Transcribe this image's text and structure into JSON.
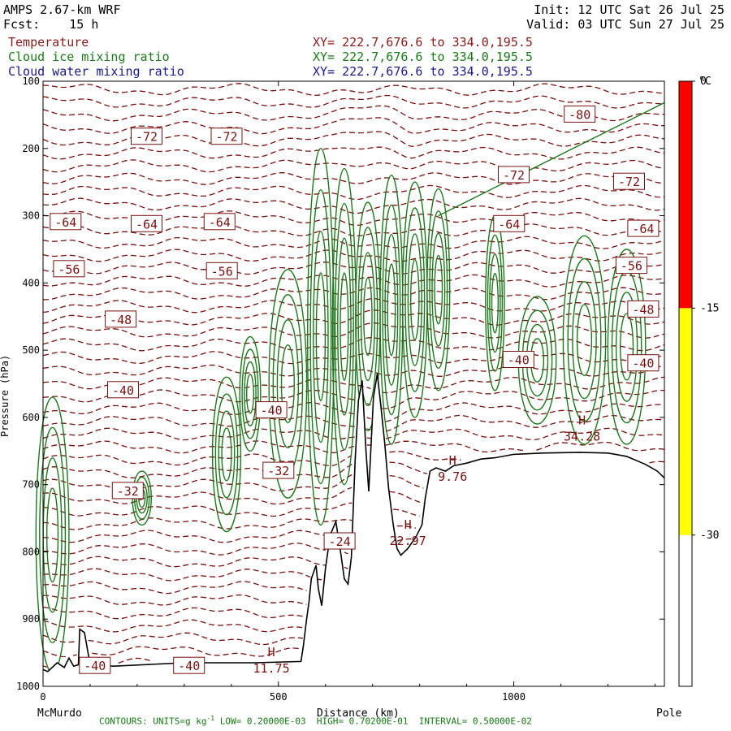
{
  "header": {
    "model": "AMPS 2.67-km WRF",
    "fcst_label": "Fcst:",
    "fcst_value": "15 h",
    "init": "Init: 12 UTC Sat 26 Jul 25",
    "valid": "Valid: 03 UTC Sun 27 Jul 25"
  },
  "fields": [
    {
      "name": "Temperature",
      "xy": "XY= 222.7,676.6 to 334.0,195.5",
      "color": "#8b1a1a"
    },
    {
      "name": "Cloud ice mixing ratio",
      "xy": "XY= 222.7,676.6 to 334.0,195.5",
      "color": "#1a7a1a"
    },
    {
      "name": "Cloud water mixing ratio",
      "xy": "XY= 222.7,676.6 to 334.0,195.5",
      "color": "#1a1a8b"
    }
  ],
  "colors": {
    "temperature": "#7a1010",
    "cloud_ice": "#1a7a1a",
    "terrain": "#000000",
    "colorbar_red": "#ff0000",
    "colorbar_yellow": "#ffff00"
  },
  "chart_data": {
    "type": "contour_cross_section",
    "xlabel": "Distance (km)",
    "ylabel": "Pressure (hPa)",
    "x_range": [
      0,
      1320
    ],
    "y_range": [
      100,
      1000
    ],
    "x_ticks": [
      0,
      500,
      1000
    ],
    "y_ticks": [
      100,
      200,
      300,
      400,
      500,
      600,
      700,
      800,
      900,
      1000
    ],
    "x_endpoints": {
      "left": "McMurdo",
      "right": "Pole"
    },
    "temperature_labels": [
      {
        "value": "-72",
        "x": 220,
        "p": 183
      },
      {
        "value": "-72",
        "x": 390,
        "p": 183
      },
      {
        "value": "-80",
        "x": 1140,
        "p": 150
      },
      {
        "value": "-72",
        "x": 1000,
        "p": 240
      },
      {
        "value": "-72",
        "x": 1245,
        "p": 250
      },
      {
        "value": "-64",
        "x": 48,
        "p": 310
      },
      {
        "value": "-64",
        "x": 220,
        "p": 313
      },
      {
        "value": "-64",
        "x": 375,
        "p": 310
      },
      {
        "value": "-64",
        "x": 990,
        "p": 313
      },
      {
        "value": "-64",
        "x": 1275,
        "p": 320
      },
      {
        "value": "-56",
        "x": 55,
        "p": 380
      },
      {
        "value": "-56",
        "x": 380,
        "p": 383
      },
      {
        "value": "-56",
        "x": 1250,
        "p": 375
      },
      {
        "value": "-48",
        "x": 165,
        "p": 455
      },
      {
        "value": "-48",
        "x": 1275,
        "p": 440
      },
      {
        "value": "-40",
        "x": 1010,
        "p": 515
      },
      {
        "value": "-40",
        "x": 1275,
        "p": 520
      },
      {
        "value": "-40",
        "x": 170,
        "p": 560
      },
      {
        "value": "-40",
        "x": 485,
        "p": 590
      },
      {
        "value": "-32",
        "x": 180,
        "p": 710
      },
      {
        "value": "-32",
        "x": 500,
        "p": 680
      },
      {
        "value": "-24",
        "x": 630,
        "p": 785
      },
      {
        "value": "-40",
        "x": 110,
        "p": 970
      },
      {
        "value": "-40",
        "x": 310,
        "p": 970
      }
    ],
    "high_labels": [
      {
        "value": "11.75",
        "x": 485,
        "p": 965
      },
      {
        "value": "22.97",
        "x": 775,
        "p": 775
      },
      {
        "value": "9.76",
        "x": 870,
        "p": 680
      },
      {
        "value": "34.28",
        "x": 1145,
        "p": 620
      }
    ],
    "terrain": [
      [
        0,
        975
      ],
      [
        10,
        978
      ],
      [
        30,
        965
      ],
      [
        45,
        972
      ],
      [
        55,
        958
      ],
      [
        65,
        970
      ],
      [
        75,
        968
      ],
      [
        78,
        915
      ],
      [
        88,
        920
      ],
      [
        100,
        968
      ],
      [
        150,
        970
      ],
      [
        300,
        965
      ],
      [
        450,
        965
      ],
      [
        548,
        963
      ],
      [
        553,
        940
      ],
      [
        560,
        900
      ],
      [
        565,
        875
      ],
      [
        570,
        840
      ],
      [
        580,
        820
      ],
      [
        585,
        855
      ],
      [
        592,
        880
      ],
      [
        600,
        825
      ],
      [
        610,
        775
      ],
      [
        622,
        755
      ],
      [
        632,
        800
      ],
      [
        640,
        840
      ],
      [
        648,
        848
      ],
      [
        655,
        808
      ],
      [
        663,
        665
      ],
      [
        670,
        575
      ],
      [
        678,
        545
      ],
      [
        686,
        650
      ],
      [
        692,
        710
      ],
      [
        702,
        570
      ],
      [
        710,
        535
      ],
      [
        718,
        585
      ],
      [
        726,
        640
      ],
      [
        734,
        705
      ],
      [
        744,
        760
      ],
      [
        752,
        795
      ],
      [
        760,
        805
      ],
      [
        775,
        795
      ],
      [
        792,
        778
      ],
      [
        805,
        760
      ],
      [
        812,
        720
      ],
      [
        822,
        680
      ],
      [
        835,
        675
      ],
      [
        855,
        680
      ],
      [
        872,
        672
      ],
      [
        900,
        668
      ],
      [
        930,
        662
      ],
      [
        960,
        660
      ],
      [
        1000,
        655
      ],
      [
        1060,
        653
      ],
      [
        1140,
        652
      ],
      [
        1200,
        653
      ],
      [
        1240,
        658
      ],
      [
        1280,
        670
      ],
      [
        1305,
        680
      ],
      [
        1320,
        690
      ]
    ],
    "colorbar": {
      "unit": "°C",
      "levels": [
        "0",
        "-15",
        "-30"
      ],
      "bands": [
        {
          "from": 0,
          "to": -15,
          "color": "#ff0000"
        },
        {
          "from": -15,
          "to": -30,
          "color": "#ffff00"
        }
      ]
    },
    "cloud_ice_contours": {
      "units": "g kg",
      "low": "0.20000E-03",
      "high": "0.70200E-01",
      "interval": "0.50000E-02"
    }
  },
  "footer": {
    "text": "CONTOURS: UNITS=g kg",
    "superscript": "-1",
    "rest": " LOW= 0.20000E-03  HIGH= 0.70200E-01  INTERVAL= 0.50000E-02"
  }
}
